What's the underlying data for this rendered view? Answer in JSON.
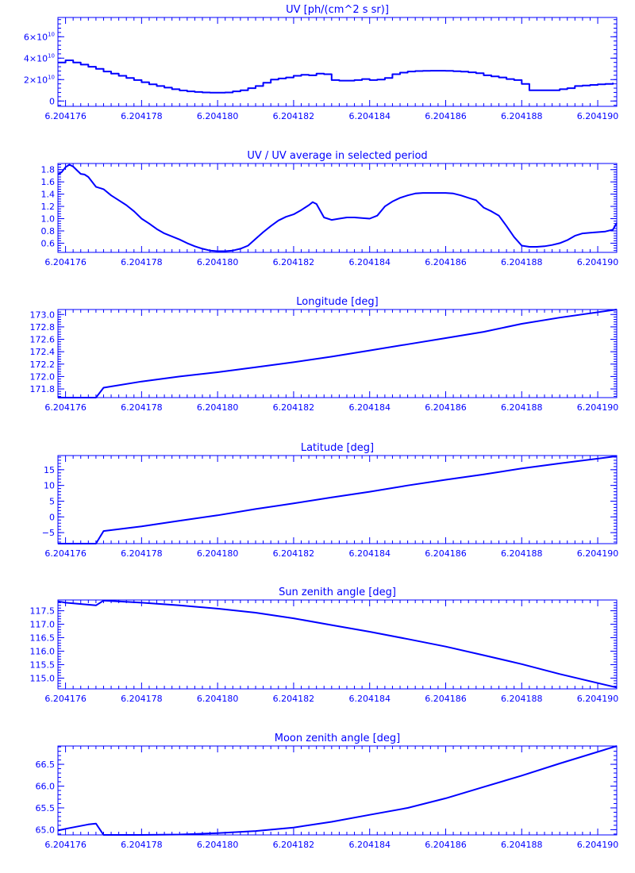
{
  "chart_data": [
    {
      "type": "line",
      "title": "UV [ph/(cm^2 s sr)]",
      "xlim": [
        6.2041758,
        6.2041905
      ],
      "ylim": [
        -5000000000,
        78000000000
      ],
      "x_ticks": [
        6.204176,
        6.204178,
        6.20418,
        6.204182,
        6.204184,
        6.204186,
        6.204188,
        6.20419
      ],
      "x_tick_labels": [
        "6.204176",
        "6.204178",
        "6.204180",
        "6.204182",
        "6.204184",
        "6.204186",
        "6.204188",
        "6.204190"
      ],
      "y_ticks": [
        0,
        20000000000,
        40000000000,
        60000000000
      ],
      "y_tick_labels": [
        {
          "base": "0",
          "exp": ""
        },
        {
          "base": "2×10",
          "exp": "10"
        },
        {
          "base": "4×10",
          "exp": "10"
        },
        {
          "base": "6×10",
          "exp": "10"
        }
      ],
      "series": [
        {
          "step": true,
          "x": [
            6.2041758,
            6.204176,
            6.2041762,
            6.2041764,
            6.2041766,
            6.2041768,
            6.204177,
            6.2041772,
            6.2041774,
            6.2041776,
            6.2041778,
            6.204178,
            6.2041782,
            6.2041784,
            6.2041786,
            6.2041788,
            6.204179,
            6.2041792,
            6.2041794,
            6.2041796,
            6.2041798,
            6.20418,
            6.2041802,
            6.2041804,
            6.2041806,
            6.2041808,
            6.204181,
            6.2041812,
            6.2041814,
            6.2041816,
            6.2041818,
            6.204182,
            6.2041822,
            6.2041824,
            6.2041826,
            6.2041828,
            6.204183,
            6.2041832,
            6.2041834,
            6.2041836,
            6.2041838,
            6.204184,
            6.2041842,
            6.2041844,
            6.2041846,
            6.2041848,
            6.204185,
            6.2041852,
            6.2041854,
            6.2041856,
            6.2041858,
            6.204186,
            6.2041862,
            6.2041864,
            6.2041866,
            6.2041868,
            6.204187,
            6.2041872,
            6.2041874,
            6.2041876,
            6.2041878,
            6.204188,
            6.2041882,
            6.2041884,
            6.2041886,
            6.2041888,
            6.204189,
            6.2041892,
            6.2041894,
            6.2041896,
            6.2041898,
            6.20419,
            6.2041902,
            6.2041904
          ],
          "y": [
            36000000000,
            38000000000,
            36000000000,
            34000000000,
            32000000000,
            30000000000,
            27500000000,
            25500000000,
            23500000000,
            21500000000,
            19500000000,
            17500000000,
            15500000000,
            14000000000,
            12500000000,
            11000000000,
            9800000000,
            9000000000,
            8400000000,
            8000000000,
            7800000000,
            7800000000,
            8000000000,
            9000000000,
            10000000000,
            12000000000,
            14000000000,
            17000000000,
            20000000000,
            21000000000,
            22000000000,
            23500000000,
            24500000000,
            24000000000,
            25500000000,
            25000000000,
            19500000000,
            19000000000,
            19000000000,
            19500000000,
            20500000000,
            19500000000,
            20000000000,
            21500000000,
            25000000000,
            26500000000,
            27500000000,
            28000000000,
            28200000000,
            28300000000,
            28300000000,
            28100000000,
            27800000000,
            27400000000,
            26800000000,
            26000000000,
            24000000000,
            23000000000,
            22000000000,
            20500000000,
            19500000000,
            16000000000,
            10000000000,
            10000000000,
            10000000000,
            10000000000,
            11000000000,
            12000000000,
            14000000000,
            14500000000,
            15000000000,
            15500000000,
            16000000000,
            17000000000
          ]
        }
      ]
    },
    {
      "type": "line",
      "title": "UV / UV average in selected period",
      "xlim": [
        6.2041758,
        6.2041905
      ],
      "ylim": [
        0.45,
        1.9
      ],
      "x_ticks": [
        6.204176,
        6.204178,
        6.20418,
        6.204182,
        6.204184,
        6.204186,
        6.204188,
        6.20419
      ],
      "x_tick_labels": [
        "6.204176",
        "6.204178",
        "6.204180",
        "6.204182",
        "6.204184",
        "6.204186",
        "6.204188",
        "6.204190"
      ],
      "y_ticks": [
        0.6,
        0.8,
        1.0,
        1.2,
        1.4,
        1.6,
        1.8
      ],
      "y_tick_labels": [
        "0.6",
        "0.8",
        "1.0",
        "1.2",
        "1.4",
        "1.6",
        "1.8"
      ],
      "series": [
        {
          "x": [
            6.2041758,
            6.2041759,
            6.204176,
            6.2041761,
            6.2041762,
            6.2041763,
            6.2041764,
            6.2041765,
            6.2041766,
            6.2041768,
            6.204177,
            6.2041772,
            6.2041774,
            6.2041776,
            6.2041778,
            6.204178,
            6.2041782,
            6.2041784,
            6.2041786,
            6.2041788,
            6.204179,
            6.2041792,
            6.2041794,
            6.2041796,
            6.2041798,
            6.20418,
            6.2041802,
            6.2041804,
            6.2041806,
            6.2041808,
            6.204181,
            6.2041812,
            6.2041814,
            6.2041816,
            6.2041818,
            6.204182,
            6.2041822,
            6.2041824,
            6.2041825,
            6.2041826,
            6.2041828,
            6.204183,
            6.2041832,
            6.2041834,
            6.2041836,
            6.2041838,
            6.204184,
            6.2041842,
            6.2041844,
            6.2041846,
            6.2041848,
            6.204185,
            6.2041852,
            6.2041854,
            6.2041856,
            6.2041858,
            6.204186,
            6.2041862,
            6.2041864,
            6.2041866,
            6.2041868,
            6.204187,
            6.2041872,
            6.2041874,
            6.2041876,
            6.2041878,
            6.204188,
            6.2041882,
            6.2041884,
            6.2041886,
            6.2041888,
            6.204189,
            6.2041892,
            6.2041894,
            6.2041896,
            6.2041898,
            6.20419,
            6.2041902,
            6.2041904,
            6.2041905
          ],
          "y": [
            1.72,
            1.76,
            1.84,
            1.88,
            1.85,
            1.79,
            1.73,
            1.72,
            1.68,
            1.52,
            1.48,
            1.38,
            1.3,
            1.22,
            1.12,
            1.0,
            0.92,
            0.83,
            0.76,
            0.71,
            0.66,
            0.6,
            0.55,
            0.51,
            0.48,
            0.47,
            0.47,
            0.48,
            0.51,
            0.56,
            0.67,
            0.78,
            0.88,
            0.97,
            1.03,
            1.07,
            1.14,
            1.22,
            1.27,
            1.24,
            1.02,
            0.98,
            1.0,
            1.02,
            1.02,
            1.01,
            1.0,
            1.05,
            1.2,
            1.28,
            1.34,
            1.38,
            1.41,
            1.42,
            1.42,
            1.42,
            1.42,
            1.41,
            1.38,
            1.34,
            1.3,
            1.18,
            1.12,
            1.05,
            0.88,
            0.7,
            0.56,
            0.54,
            0.54,
            0.55,
            0.57,
            0.6,
            0.65,
            0.72,
            0.76,
            0.77,
            0.78,
            0.79,
            0.82,
            0.93
          ]
        }
      ]
    },
    {
      "type": "line",
      "title": "Longitude [deg]",
      "xlim": [
        6.2041758,
        6.2041905
      ],
      "ylim": [
        171.66,
        173.08
      ],
      "x_ticks": [
        6.204176,
        6.204178,
        6.20418,
        6.204182,
        6.204184,
        6.204186,
        6.204188,
        6.20419
      ],
      "x_tick_labels": [
        "6.204176",
        "6.204178",
        "6.204180",
        "6.204182",
        "6.204184",
        "6.204186",
        "6.204188",
        "6.204190"
      ],
      "y_ticks": [
        171.8,
        172.0,
        172.2,
        172.4,
        172.6,
        172.8,
        173.0
      ],
      "y_tick_labels": [
        "171.8",
        "172.0",
        "172.2",
        "172.4",
        "172.6",
        "172.8",
        "173.0"
      ],
      "series": [
        {
          "x": [
            6.2041758,
            6.2041768,
            6.204177,
            6.204178,
            6.204179,
            6.20418,
            6.204181,
            6.204182,
            6.204183,
            6.204184,
            6.204185,
            6.204186,
            6.204187,
            6.204188,
            6.204189,
            6.2041905
          ],
          "y": [
            171.66,
            171.66,
            171.82,
            171.92,
            172.0,
            172.07,
            172.15,
            172.23,
            172.32,
            172.42,
            172.52,
            172.62,
            172.72,
            172.85,
            172.95,
            173.08
          ]
        }
      ]
    },
    {
      "type": "line",
      "title": "Latitude [deg]",
      "xlim": [
        6.2041758,
        6.2041905
      ],
      "ylim": [
        -8.5,
        19.5
      ],
      "x_ticks": [
        6.204176,
        6.204178,
        6.20418,
        6.204182,
        6.204184,
        6.204186,
        6.204188,
        6.20419
      ],
      "x_tick_labels": [
        "6.204176",
        "6.204178",
        "6.204180",
        "6.204182",
        "6.204184",
        "6.204186",
        "6.204188",
        "6.204190"
      ],
      "y_ticks": [
        -5,
        0,
        5,
        10,
        15
      ],
      "y_tick_labels": [
        "−5",
        "0",
        "5",
        "10",
        "15"
      ],
      "series": [
        {
          "x": [
            6.2041758,
            6.2041768,
            6.204177,
            6.204178,
            6.204179,
            6.20418,
            6.204181,
            6.204182,
            6.204183,
            6.204184,
            6.204185,
            6.204186,
            6.204187,
            6.204188,
            6.204189,
            6.2041905
          ],
          "y": [
            -8.5,
            -8.5,
            -4.5,
            -3.0,
            -1.2,
            0.5,
            2.5,
            4.3,
            6.2,
            8.0,
            10.0,
            11.8,
            13.5,
            15.4,
            17.0,
            19.3
          ]
        }
      ]
    },
    {
      "type": "line",
      "title": "Sun zenith angle [deg]",
      "xlim": [
        6.2041758,
        6.2041905
      ],
      "ylim": [
        114.6,
        117.9
      ],
      "x_ticks": [
        6.204176,
        6.204178,
        6.20418,
        6.204182,
        6.204184,
        6.204186,
        6.204188,
        6.20419
      ],
      "x_tick_labels": [
        "6.204176",
        "6.204178",
        "6.204180",
        "6.204182",
        "6.204184",
        "6.204186",
        "6.204188",
        "6.204190"
      ],
      "y_ticks": [
        115.0,
        115.5,
        116.0,
        116.5,
        117.0,
        117.5
      ],
      "y_tick_labels": [
        "115.0",
        "115.5",
        "116.0",
        "116.5",
        "117.0",
        "117.5"
      ],
      "series": [
        {
          "x": [
            6.2041758,
            6.204176,
            6.2041768,
            6.204177,
            6.204178,
            6.204179,
            6.20418,
            6.204181,
            6.204182,
            6.204183,
            6.204184,
            6.204185,
            6.204186,
            6.204187,
            6.204188,
            6.204189,
            6.2041905
          ],
          "y": [
            117.85,
            117.8,
            117.7,
            117.88,
            117.8,
            117.7,
            117.58,
            117.43,
            117.22,
            116.97,
            116.72,
            116.45,
            116.17,
            115.85,
            115.52,
            115.15,
            114.65
          ]
        }
      ]
    },
    {
      "type": "line",
      "title": "Moon zenith angle [deg]",
      "xlim": [
        6.2041758,
        6.2041905
      ],
      "ylim": [
        64.88,
        66.92
      ],
      "x_ticks": [
        6.204176,
        6.204178,
        6.20418,
        6.204182,
        6.204184,
        6.204186,
        6.204188,
        6.20419
      ],
      "x_tick_labels": [
        "6.204176",
        "6.204178",
        "6.204180",
        "6.204182",
        "6.204184",
        "6.204186",
        "6.204188",
        "6.204190"
      ],
      "y_ticks": [
        65.0,
        65.5,
        66.0,
        66.5
      ],
      "y_tick_labels": [
        "65.0",
        "65.5",
        "66.0",
        "66.5"
      ],
      "series": [
        {
          "x": [
            6.2041758,
            6.204176,
            6.2041766,
            6.2041768,
            6.204177,
            6.204178,
            6.204179,
            6.20418,
            6.204181,
            6.204182,
            6.204183,
            6.204184,
            6.204185,
            6.204186,
            6.204187,
            6.204188,
            6.204189,
            6.2041905
          ],
          "y": [
            64.98,
            65.02,
            65.12,
            65.14,
            64.88,
            64.88,
            64.89,
            64.92,
            64.97,
            65.05,
            65.18,
            65.34,
            65.5,
            65.72,
            65.98,
            66.24,
            66.52,
            66.92
          ]
        }
      ]
    }
  ]
}
